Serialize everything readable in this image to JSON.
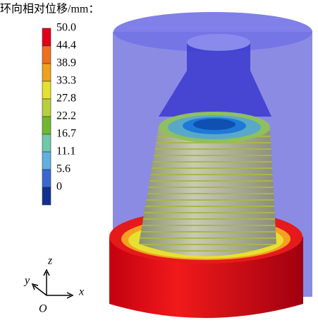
{
  "legend": {
    "title": "环向相对位移/mm：",
    "labels": [
      "50.0",
      "44.4",
      "38.9",
      "33.3",
      "27.8",
      "22.2",
      "16.7",
      "11.1",
      "5.6",
      "0"
    ]
  },
  "axes": {
    "z": "z",
    "y": "y",
    "x": "x",
    "origin": "O"
  }
}
